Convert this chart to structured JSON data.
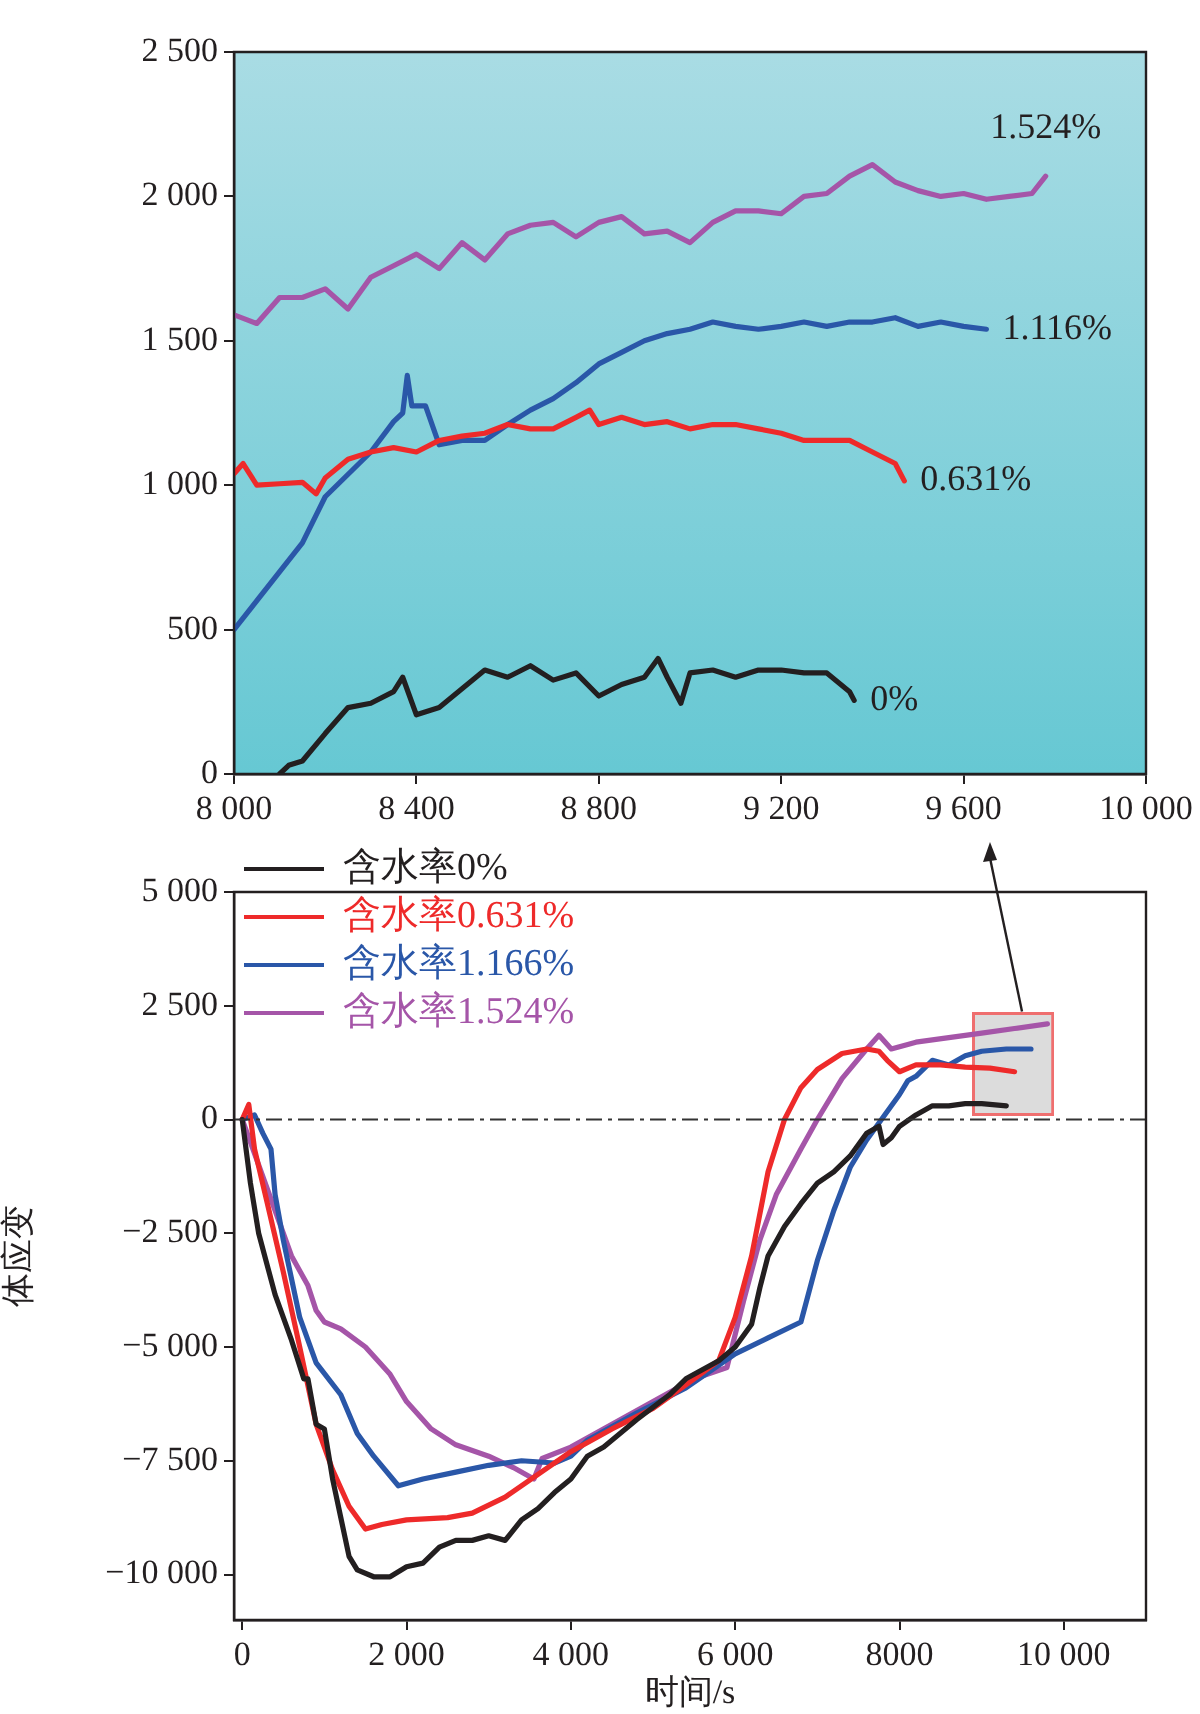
{
  "chart_data": [
    {
      "type": "line",
      "xlim": [
        8000,
        10000
      ],
      "xticks": [
        {
          "value": 8000,
          "label": "8 000"
        },
        {
          "value": 8400,
          "label": "8 400"
        },
        {
          "value": 8800,
          "label": "8 800"
        },
        {
          "value": 9200,
          "label": "9 200"
        },
        {
          "value": 9600,
          "label": "9 600"
        },
        {
          "value": 10000,
          "label": "10 000"
        }
      ],
      "ylim": [
        0,
        2500
      ],
      "yticks": [
        {
          "value": 0,
          "label": "0"
        },
        500,
        {
          "value": 1000,
          "label": "1 000"
        },
        {
          "value": 1500,
          "label": "1 500"
        },
        {
          "value": 2000,
          "label": "2 000"
        },
        {
          "value": 2500,
          "label": "2 500"
        }
      ],
      "grid": false,
      "legend": false,
      "marker": "none",
      "series": [
        {
          "name": "0%",
          "color": "#231f20",
          "x": [
            8100,
            8120,
            8150,
            8200,
            8250,
            8300,
            8350,
            8370,
            8400,
            8450,
            8500,
            8550,
            8600,
            8650,
            8700,
            8750,
            8800,
            8850,
            8900,
            8930,
            8950,
            8980,
            9000,
            9050,
            9100,
            9150,
            9200,
            9250,
            9300,
            9350,
            9360
          ],
          "values": [
            0,
            30,
            45,
            140,
            230,
            245,
            285,
            335,
            205,
            230,
            295,
            360,
            335,
            375,
            325,
            350,
            270,
            310,
            335,
            400,
            335,
            245,
            350,
            360,
            335,
            360,
            360,
            350,
            350,
            285,
            255
          ]
        },
        {
          "name": "0.631%",
          "color": "#ee2a2a",
          "x": [
            8000,
            8020,
            8050,
            8100,
            8150,
            8180,
            8200,
            8250,
            8300,
            8350,
            8400,
            8450,
            8500,
            8550,
            8600,
            8650,
            8700,
            8750,
            8780,
            8800,
            8850,
            8900,
            8950,
            9000,
            9050,
            9100,
            9150,
            9200,
            9250,
            9300,
            9350,
            9400,
            9450,
            9470
          ],
          "values": [
            1040,
            1075,
            1000,
            1005,
            1010,
            970,
            1025,
            1090,
            1115,
            1130,
            1115,
            1155,
            1170,
            1180,
            1210,
            1195,
            1195,
            1235,
            1260,
            1210,
            1235,
            1210,
            1220,
            1195,
            1210,
            1210,
            1195,
            1180,
            1155,
            1155,
            1155,
            1115,
            1075,
            1015
          ]
        },
        {
          "name": "1.116%",
          "color": "#2a57a8",
          "x": [
            8000,
            8150,
            8200,
            8300,
            8350,
            8370,
            8380,
            8390,
            8420,
            8450,
            8500,
            8550,
            8600,
            8650,
            8700,
            8750,
            8800,
            8850,
            8900,
            8950,
            9000,
            9050,
            9100,
            9150,
            9200,
            9250,
            9300,
            9350,
            9400,
            9450,
            9500,
            9550,
            9600,
            9650
          ],
          "values": [
            500,
            800,
            960,
            1115,
            1220,
            1250,
            1380,
            1275,
            1275,
            1140,
            1155,
            1155,
            1210,
            1260,
            1300,
            1355,
            1420,
            1460,
            1500,
            1525,
            1540,
            1565,
            1550,
            1540,
            1550,
            1565,
            1550,
            1565,
            1565,
            1580,
            1550,
            1565,
            1550,
            1540
          ]
        },
        {
          "name": "1.524%",
          "color": "#a555a8",
          "x": [
            8000,
            8050,
            8100,
            8150,
            8200,
            8250,
            8300,
            8350,
            8400,
            8450,
            8500,
            8550,
            8600,
            8650,
            8700,
            8750,
            8800,
            8850,
            8900,
            8950,
            9000,
            9050,
            9100,
            9150,
            9200,
            9250,
            9300,
            9350,
            9400,
            9450,
            9500,
            9550,
            9600,
            9650,
            9700,
            9750,
            9780
          ],
          "values": [
            1590,
            1560,
            1650,
            1650,
            1680,
            1610,
            1720,
            1760,
            1800,
            1750,
            1840,
            1780,
            1870,
            1900,
            1910,
            1860,
            1910,
            1930,
            1870,
            1880,
            1840,
            1910,
            1950,
            1950,
            1940,
            2000,
            2010,
            2070,
            2110,
            2050,
            2020,
            2000,
            2010,
            1990,
            2000,
            2010,
            2070
          ]
        }
      ]
    },
    {
      "type": "line",
      "xlabel": "时间/s",
      "ylabel": "体应变",
      "xlim": [
        -100,
        11000
      ],
      "xticks": [
        {
          "value": 0,
          "label": "0"
        },
        {
          "value": 2000,
          "label": "2 000"
        },
        {
          "value": 4000,
          "label": "4 000"
        },
        {
          "value": 6000,
          "label": "6 000"
        },
        8000,
        {
          "value": 10000,
          "label": "10 000"
        }
      ],
      "ylim": [
        -11000,
        5000
      ],
      "yticks": [
        {
          "value": -10000,
          "label": "−10 000"
        },
        {
          "value": -7500,
          "label": "−7 500"
        },
        {
          "value": -5000,
          "label": "−5 000"
        },
        {
          "value": -2500,
          "label": "−2 500"
        },
        {
          "value": 0,
          "label": "0"
        },
        {
          "value": 2500,
          "label": "2 500"
        },
        {
          "value": 5000,
          "label": "5 000"
        }
      ],
      "grid": false,
      "legend": "top left",
      "marker": "none",
      "ref_lines": [
        {
          "axis": "y",
          "value": 0,
          "color": "#333333",
          "line_style": "dashdot"
        }
      ],
      "series": [
        {
          "name": "含水率0%",
          "color": "#231f20",
          "x": [
            0,
            100,
            200,
            400,
            600,
            750,
            800,
            900,
            1000,
            1100,
            1200,
            1300,
            1400,
            1600,
            1800,
            2000,
            2200,
            2400,
            2600,
            2800,
            3000,
            3200,
            3400,
            3600,
            3800,
            4000,
            4200,
            4400,
            4800,
            5200,
            5400,
            5800,
            6000,
            6200,
            6300,
            6400,
            6600,
            6800,
            7000,
            7200,
            7400,
            7600,
            7750,
            7800,
            7900,
            8000,
            8200,
            8400,
            8600,
            8800,
            9000,
            9300
          ],
          "values": [
            0,
            -1400,
            -2500,
            -3850,
            -4850,
            -5700,
            -5700,
            -6700,
            -6800,
            -7900,
            -8750,
            -9600,
            -9900,
            -10050,
            -10050,
            -9830,
            -9750,
            -9400,
            -9250,
            -9250,
            -9150,
            -9250,
            -8800,
            -8550,
            -8200,
            -7900,
            -7400,
            -7200,
            -6600,
            -6050,
            -5700,
            -5300,
            -5000,
            -4500,
            -3700,
            -3000,
            -2350,
            -1850,
            -1400,
            -1150,
            -800,
            -300,
            -150,
            -550,
            -400,
            -150,
            100,
            300,
            300,
            350,
            350,
            300
          ]
        },
        {
          "name": "含水率0.631%",
          "color": "#ee2a2a",
          "x": [
            0,
            80,
            150,
            300,
            500,
            700,
            900,
            1100,
            1300,
            1500,
            1700,
            2000,
            2500,
            2800,
            3200,
            3600,
            4000,
            4500,
            5000,
            5500,
            5800,
            6000,
            6200,
            6400,
            6600,
            6800,
            7000,
            7300,
            7600,
            7750,
            7850,
            8000,
            8200,
            8500,
            8800,
            9100,
            9400
          ],
          "values": [
            0,
            330,
            -650,
            -1800,
            -3350,
            -5000,
            -6700,
            -7700,
            -8500,
            -9000,
            -8900,
            -8800,
            -8750,
            -8650,
            -8300,
            -7800,
            -7300,
            -6800,
            -6350,
            -5700,
            -5300,
            -4350,
            -3000,
            -1150,
            0,
            700,
            1100,
            1450,
            1550,
            1500,
            1300,
            1050,
            1200,
            1200,
            1150,
            1130,
            1050
          ]
        },
        {
          "name": "含水率1.166%",
          "color": "#2a57a8",
          "x": [
            0,
            150,
            250,
            350,
            400,
            500,
            700,
            900,
            1200,
            1400,
            1600,
            1900,
            2200,
            2600,
            3000,
            3400,
            3800,
            4000,
            4200,
            4800,
            5400,
            6000,
            6400,
            6800,
            7000,
            7200,
            7400,
            7600,
            7800,
            8000,
            8100,
            8200,
            8400,
            8600,
            8800,
            9000,
            9300,
            9600
          ],
          "values": [
            0,
            100,
            -300,
            -650,
            -1650,
            -2650,
            -4350,
            -5350,
            -6050,
            -6900,
            -7400,
            -8050,
            -7900,
            -7750,
            -7600,
            -7500,
            -7550,
            -7400,
            -7050,
            -6450,
            -5900,
            -5150,
            -4800,
            -4450,
            -3100,
            -2000,
            -1050,
            -450,
            50,
            550,
            850,
            950,
            1300,
            1200,
            1400,
            1500,
            1550,
            1550
          ]
        },
        {
          "name": "含水率1.524%",
          "color": "#a555a8",
          "x": [
            0,
            200,
            400,
            600,
            800,
            900,
            1000,
            1200,
            1500,
            1800,
            2000,
            2300,
            2600,
            3000,
            3300,
            3550,
            3650,
            4000,
            4500,
            5000,
            5500,
            5900,
            6100,
            6300,
            6500,
            6800,
            7000,
            7300,
            7600,
            7750,
            7900,
            8200,
            8600,
            9000,
            9400,
            9800
          ],
          "values": [
            0,
            -1000,
            -2000,
            -3000,
            -3650,
            -4200,
            -4450,
            -4600,
            -5000,
            -5600,
            -6200,
            -6800,
            -7150,
            -7400,
            -7650,
            -7900,
            -7450,
            -7200,
            -6700,
            -6200,
            -5700,
            -5450,
            -4000,
            -2650,
            -1650,
            -650,
            0,
            900,
            1550,
            1850,
            1550,
            1700,
            1800,
            1900,
            2000,
            2100
          ]
        }
      ]
    }
  ]
}
